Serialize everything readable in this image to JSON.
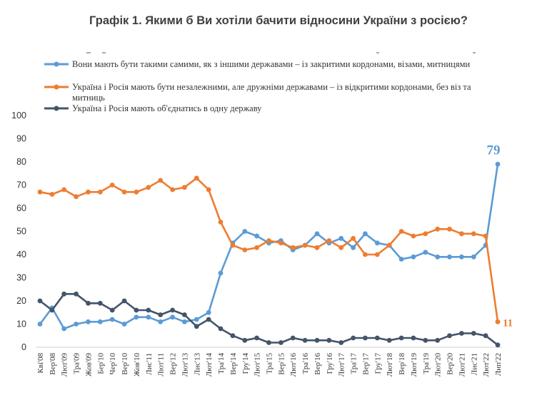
{
  "chart_data": {
    "type": "line",
    "title": "Графік 1. Якими б Ви хотіли бачити відносини України з росією?",
    "categories": [
      "Кві'08",
      "Вер'08",
      "Лют'09",
      "Тра'09",
      "Жов'09",
      "Бер'10",
      "Чер'10",
      "Вер'10",
      "Жов'10",
      "Лис'11",
      "Лют'11",
      "Вер'12",
      "Лют'13",
      "Лис'13",
      "Лют'14",
      "Тра'14",
      "Вер'14",
      "Гру'14",
      "Лют'15",
      "Тра'15",
      "Вер'15",
      "Лют'16",
      "Тра'16",
      "Вер'16",
      "Гру'16",
      "Лют'17",
      "Тра'17",
      "Вер'17",
      "Гру'17",
      "Лют'18",
      "Вер'18",
      "Лют'19",
      "Тра'19",
      "Лют'20",
      "Вер'20",
      "Лют'21",
      "Лис'21",
      "Лют'22",
      "Лип'22"
    ],
    "ylim": [
      0,
      100
    ],
    "yticks": [
      0,
      10,
      20,
      30,
      40,
      50,
      60,
      70,
      80,
      90,
      100
    ],
    "series": [
      {
        "name": "Вони мають бути такими самими, як з іншими державами – із закритими кордонами, візами, митницями",
        "color": "#5B9BD5",
        "values": [
          10,
          17,
          8,
          10,
          11,
          11,
          12,
          10,
          13,
          13,
          11,
          13,
          11,
          12,
          15,
          32,
          45,
          50,
          48,
          45,
          46,
          42,
          44,
          49,
          45,
          47,
          43,
          49,
          45,
          44,
          38,
          39,
          41,
          39,
          39,
          39,
          39,
          44,
          79
        ],
        "end_label": "79"
      },
      {
        "name": "Україна і Росія мають бути незалежними, але дружніми державами – із відкритими кордонами, без віз та митниць",
        "color": "#ED7D31",
        "values": [
          67,
          66,
          68,
          65,
          67,
          67,
          70,
          67,
          67,
          69,
          72,
          68,
          69,
          73,
          68,
          54,
          44,
          42,
          43,
          46,
          45,
          43,
          44,
          43,
          46,
          43,
          47,
          40,
          40,
          44,
          50,
          48,
          49,
          51,
          51,
          49,
          49,
          48,
          11
        ],
        "end_label": "11"
      },
      {
        "name": "Україна і Росія мають об'єднатись в одну державу",
        "color": "#44546A",
        "values": [
          20,
          16,
          23,
          23,
          19,
          19,
          16,
          20,
          16,
          16,
          14,
          16,
          14,
          9,
          12,
          8,
          5,
          3,
          4,
          2,
          2,
          4,
          3,
          3,
          3,
          2,
          4,
          4,
          4,
          3,
          4,
          4,
          3,
          3,
          5,
          6,
          6,
          5,
          1
        ]
      }
    ]
  }
}
